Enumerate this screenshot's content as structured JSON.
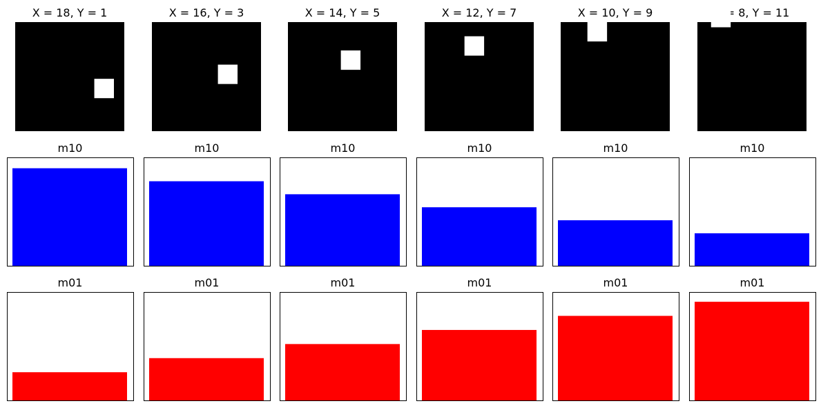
{
  "figure": {
    "panels": [
      {
        "title": "X = 18, Y = 1",
        "mass_fraction": 0.9
      },
      {
        "title": "X = 16, Y = 3",
        "mass_fraction": 0.78
      },
      {
        "title": "X = 14, Y = 5",
        "mass_fraction": 0.66
      },
      {
        "title": "X = 12, Y = 7",
        "mass_fraction": 0.54
      },
      {
        "title": "X = 10, Y = 9",
        "mass_fraction": 0.42
      },
      {
        "title": "X = 8, Y = 11",
        "mass_fraction": 0.3
      }
    ],
    "image_colors": {
      "background": "#000000",
      "square": "#ffffff"
    }
  },
  "chart_data": [
    {
      "type": "bar",
      "title": "m10",
      "categories": [
        "X = 18, Y = 1",
        "X = 16, Y = 3",
        "X = 14, Y = 5",
        "X = 12, Y = 7",
        "X = 10, Y = 9",
        "X = 8, Y = 11"
      ],
      "values": [
        0.9,
        0.78,
        0.66,
        0.54,
        0.42,
        0.3
      ],
      "ylim": [
        0,
        1
      ],
      "color": "#0000ff",
      "axis_ticks": false,
      "grid": false
    },
    {
      "type": "bar",
      "title": "m01",
      "categories": [
        "X = 18, Y = 1",
        "X = 16, Y = 3",
        "X = 14, Y = 5",
        "X = 12, Y = 7",
        "X = 10, Y = 9",
        "X = 8, Y = 11"
      ],
      "values": [
        0.26,
        0.39,
        0.52,
        0.65,
        0.78,
        0.91
      ],
      "ylim": [
        0,
        1
      ],
      "color": "#ff0000",
      "axis_ticks": false,
      "grid": false
    }
  ]
}
